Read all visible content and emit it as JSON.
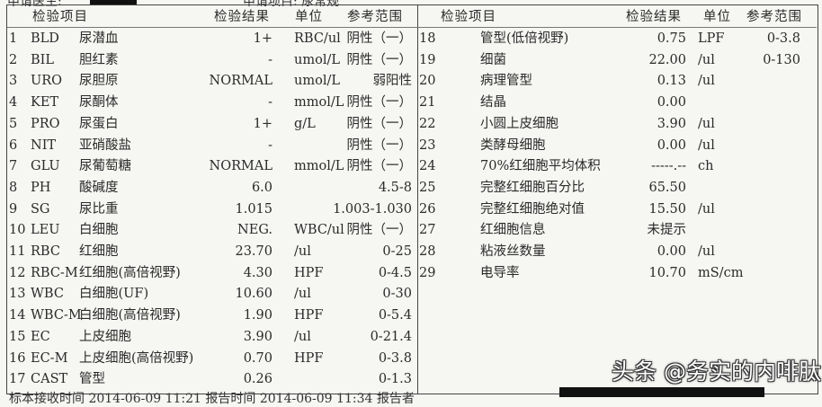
{
  "top": {
    "doctor_label": "申请医生:",
    "item_label": "申请项目: 尿常规"
  },
  "headers": {
    "item": "检验项目",
    "result": "检验结果",
    "unit": "单位",
    "range": "参考范围"
  },
  "left_rows": [
    {
      "no": "1",
      "code": "BLD",
      "name": "尿潜血",
      "result": "1+",
      "unit": "RBC/ul",
      "range": "阴性（一）"
    },
    {
      "no": "2",
      "code": "BIL",
      "name": "胆红素",
      "result": "-",
      "unit": "umol/L",
      "range": "阴性（一）"
    },
    {
      "no": "3",
      "code": "URO",
      "name": "尿胆原",
      "result": "NORMAL",
      "unit": "umol/L",
      "range": "弱阳性"
    },
    {
      "no": "4",
      "code": "KET",
      "name": "尿酮体",
      "result": "-",
      "unit": "mmol/L",
      "range": "阴性（一）"
    },
    {
      "no": "5",
      "code": "PRO",
      "name": "尿蛋白",
      "result": "1+",
      "unit": "g/L",
      "range": "阴性（一）"
    },
    {
      "no": "6",
      "code": "NIT",
      "name": "亚硝酸盐",
      "result": "-",
      "unit": "",
      "range": "阴性（一）"
    },
    {
      "no": "7",
      "code": "GLU",
      "name": "尿葡萄糖",
      "result": "NORMAL",
      "unit": "mmol/L",
      "range": "阴性（一）"
    },
    {
      "no": "8",
      "code": "PH",
      "name": "酸碱度",
      "result": "6.0",
      "unit": "",
      "range": "4.5-8"
    },
    {
      "no": "9",
      "code": "SG",
      "name": "尿比重",
      "result": "1.015",
      "unit": "",
      "range": "1.003-1.030"
    },
    {
      "no": "10",
      "code": "LEU",
      "name": "白细胞",
      "result": "NEG.",
      "unit": "WBC/ul",
      "range": "阴性（一）"
    },
    {
      "no": "11",
      "code": "RBC",
      "name": "红细胞",
      "result": "23.70",
      "unit": "/ul",
      "range": "0-25"
    },
    {
      "no": "12",
      "code": "RBC-M",
      "name": "红细胞(高倍视野)",
      "result": "4.30",
      "unit": "HPF",
      "range": "0-4.5"
    },
    {
      "no": "13",
      "code": "WBC",
      "name": "白细胞(UF)",
      "result": "10.60",
      "unit": "/ul",
      "range": "0-30"
    },
    {
      "no": "14",
      "code": "WBC-M",
      "name": "白细胞(高倍视野)",
      "result": "1.90",
      "unit": "HPF",
      "range": "0-5.4"
    },
    {
      "no": "15",
      "code": "EC",
      "name": "上皮细胞",
      "result": "3.90",
      "unit": "/ul",
      "range": "0-21.4"
    },
    {
      "no": "16",
      "code": "EC-M",
      "name": "上皮细胞(高倍视野)",
      "result": "0.70",
      "unit": "HPF",
      "range": "0-3.8"
    },
    {
      "no": "17",
      "code": "CAST",
      "name": "管型",
      "result": "0.26",
      "unit": "",
      "range": "0-1.3"
    }
  ],
  "right_rows": [
    {
      "no": "18",
      "name": "管型(低倍视野)",
      "result": "0.75",
      "unit": "LPF",
      "range": "0-3.8"
    },
    {
      "no": "19",
      "name": "细菌",
      "result": "22.00",
      "unit": "/ul",
      "range": "0-130"
    },
    {
      "no": "20",
      "name": "病理管型",
      "result": "0.13",
      "unit": "/ul",
      "range": ""
    },
    {
      "no": "21",
      "name": "结晶",
      "result": "0.00",
      "unit": "",
      "range": ""
    },
    {
      "no": "22",
      "name": "小圆上皮细胞",
      "result": "3.90",
      "unit": "/ul",
      "range": ""
    },
    {
      "no": "23",
      "name": "类酵母细胞",
      "result": "0.00",
      "unit": "/ul",
      "range": ""
    },
    {
      "no": "24",
      "name": "70%红细胞平均体积",
      "result": "-----.--",
      "unit": "ch",
      "range": ""
    },
    {
      "no": "25",
      "name": "完整红细胞百分比",
      "result": "65.50",
      "unit": "",
      "range": ""
    },
    {
      "no": "26",
      "name": "完整红细胞绝对值",
      "result": "15.50",
      "unit": "/ul",
      "range": ""
    },
    {
      "no": "27",
      "name": "红细胞信息",
      "result": "未提示",
      "unit": "",
      "range": ""
    },
    {
      "no": "28",
      "name": "粘液丝数量",
      "result": "0.00",
      "unit": "/ul",
      "range": ""
    },
    {
      "no": "29",
      "name": "电导率",
      "result": "10.70",
      "unit": "mS/cm",
      "range": ""
    }
  ],
  "footer": "标本接收时间  2014-06-09 11:21    报告时间  2014-06-09 11:34   报告者",
  "watermark": "头条 @务实的内啡肽"
}
